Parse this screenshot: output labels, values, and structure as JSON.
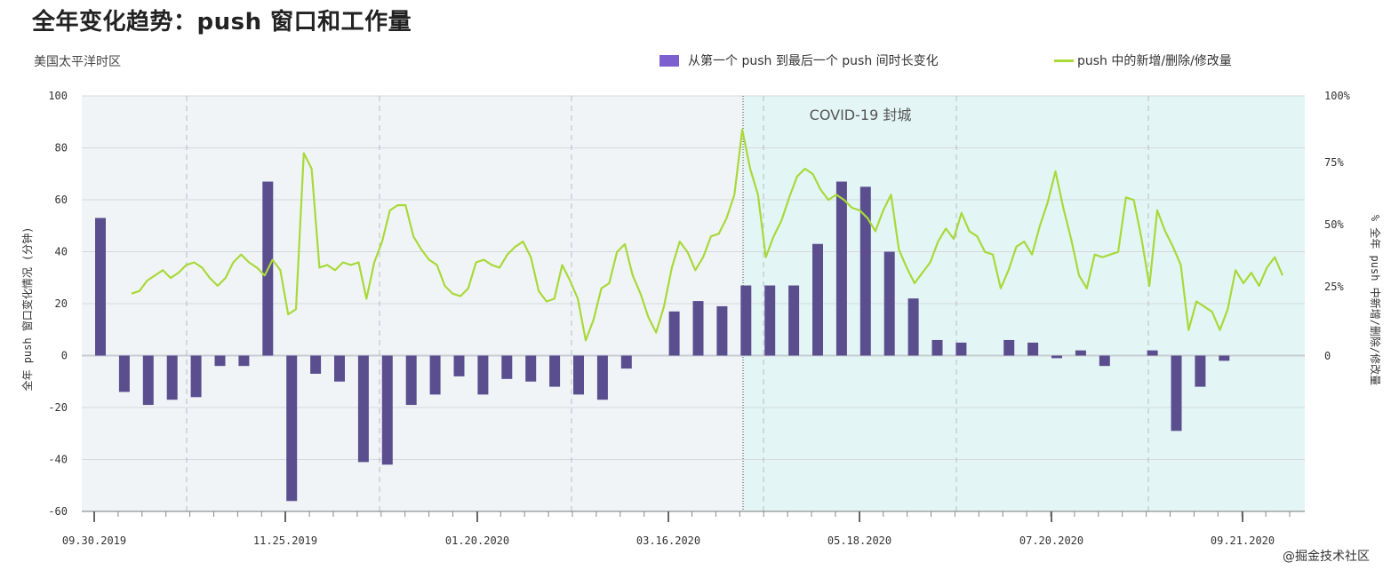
{
  "title": "全年变化趋势：push 窗口和工作量",
  "subtitle": "美国太平洋时区",
  "watermark": "@掘金技术社区",
  "legend": {
    "bar_label": "从第一个 push 到最后一个 push 间时长变化",
    "line_label": "push 中的新增/删除/修改量"
  },
  "colors": {
    "bar": "#5b4e8f",
    "bar_legend": "#7e5fd0",
    "line": "#a8d93a",
    "plot_bg": "#f1f4f7",
    "covid_bg": "#e3f6f5"
  },
  "chart_data": {
    "type": "bar+line",
    "annotation": "COVID-19 封城",
    "y_left": {
      "label": "全年 push 窗口变化情况 (分钟)",
      "ylim": [
        -60,
        100
      ],
      "ticks": [
        "100",
        "80",
        "60",
        "40",
        "20",
        "0",
        "-20",
        "-40",
        "-60"
      ]
    },
    "y_right": {
      "label": "% 全年 push 中新增/删除/修改量",
      "ticks": [
        "100%",
        "75%",
        "50%",
        "25%",
        "0"
      ]
    },
    "x_labels": [
      "09.30.2019",
      "11.25.2019",
      "01.20.2020",
      "03.16.2020",
      "05.18.2020",
      "07.20.2020",
      "09.21.2020"
    ],
    "bars": {
      "name": "从第一个 push 到最后一个 push 间时长变化",
      "values": [
        53,
        -14,
        -19,
        -17,
        -16,
        -4,
        -4,
        67,
        -56,
        -7,
        -10,
        -41,
        -42,
        -19,
        -15,
        -8,
        -15,
        -9,
        -10,
        -12,
        -15,
        -17,
        -5,
        0,
        17,
        21,
        19,
        27,
        27,
        27,
        43,
        67,
        65,
        40,
        22,
        6,
        5,
        0,
        6,
        5,
        -1,
        2,
        -4,
        0,
        2,
        -29,
        -12,
        -2
      ]
    },
    "line": {
      "name": "push 中的新增/删除/修改量",
      "values": [
        24,
        25,
        29,
        31,
        33,
        30,
        32,
        35,
        36,
        34,
        30,
        27,
        30,
        36,
        39,
        36,
        34,
        31,
        37,
        33,
        16,
        18,
        78,
        72,
        34,
        35,
        33,
        36,
        35,
        36,
        22,
        36,
        44,
        56,
        58,
        58,
        46,
        41,
        37,
        35,
        27,
        24,
        23,
        26,
        36,
        37,
        35,
        34,
        39,
        42,
        44,
        38,
        25,
        21,
        22,
        35,
        29,
        22,
        6,
        14,
        26,
        28,
        40,
        43,
        31,
        24,
        15,
        9,
        19,
        34,
        44,
        40,
        33,
        38,
        46,
        47,
        53,
        62,
        87,
        72,
        62,
        38,
        46,
        52,
        61,
        69,
        72,
        70,
        64,
        60,
        62,
        60,
        57,
        56,
        53,
        48,
        56,
        62,
        41,
        34,
        28,
        32,
        36,
        44,
        49,
        45,
        55,
        48,
        46,
        40,
        39,
        26,
        33,
        42,
        44,
        39,
        50,
        59,
        71,
        57,
        45,
        31,
        26,
        39,
        38,
        39,
        40,
        61,
        60,
        45,
        27,
        56,
        48,
        42,
        35,
        10,
        21,
        19,
        17,
        10,
        18,
        33,
        28,
        32,
        27,
        34,
        38,
        31
      ]
    }
  }
}
